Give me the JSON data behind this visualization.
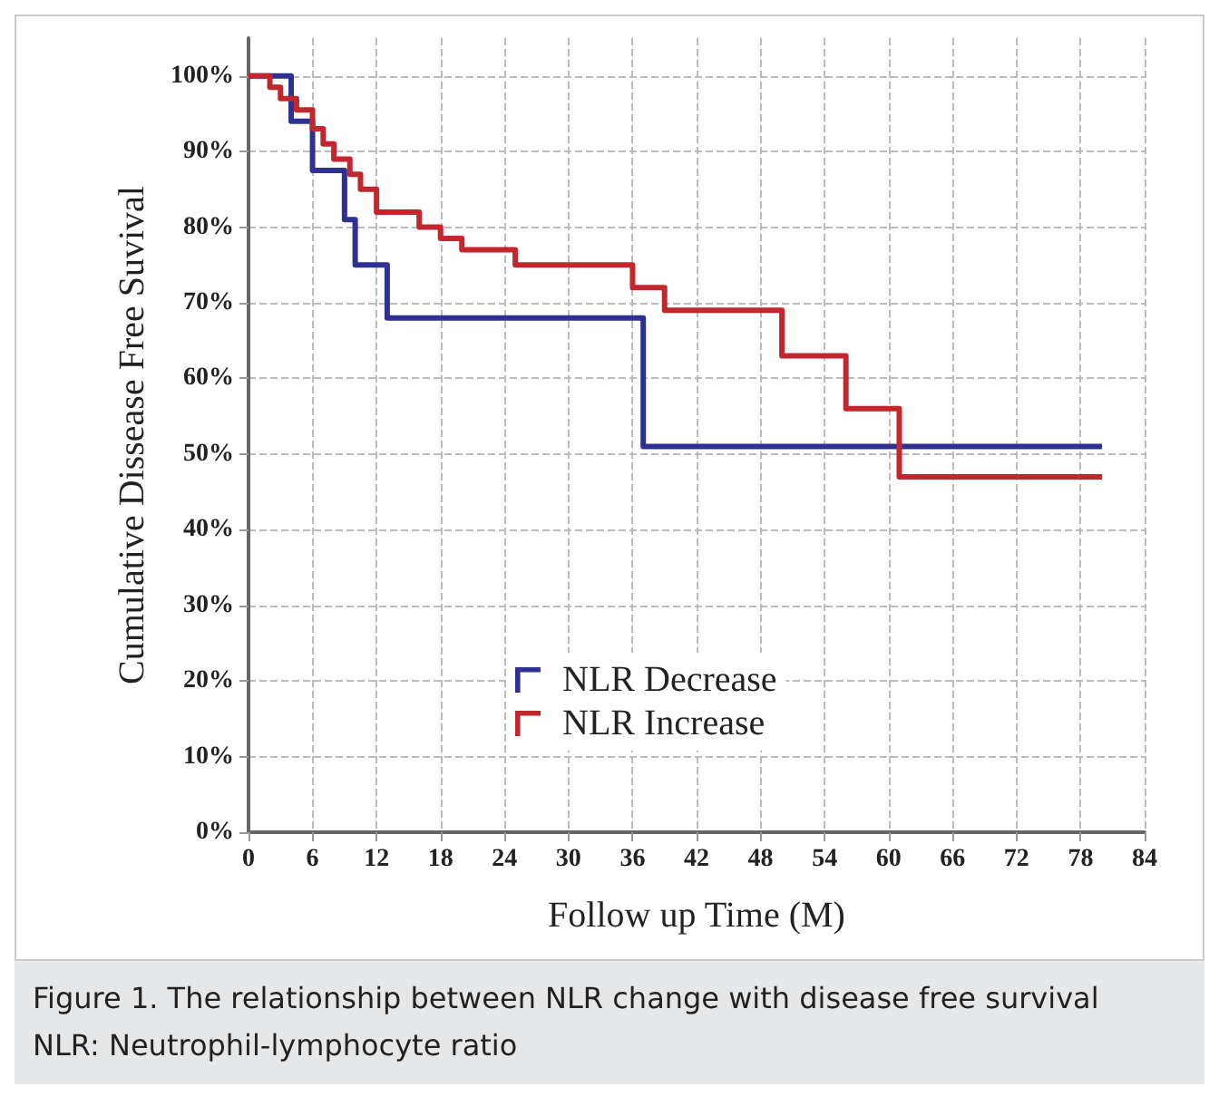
{
  "chart_data": {
    "type": "step",
    "xlabel": "Follow up Time (M)",
    "ylabel": "Cumulative Dissease Free Suvival",
    "series": [
      {
        "name": "NLR Decrease",
        "color": "#2e3192",
        "x": [
          0,
          4,
          6,
          9,
          10,
          13,
          37,
          80
        ],
        "values": [
          100,
          94,
          87.5,
          81,
          75,
          68,
          51,
          51
        ]
      },
      {
        "name": "NLR Increase",
        "color": "#c1272d",
        "x": [
          0,
          2,
          3,
          4.5,
          6,
          7,
          8,
          9.5,
          10.5,
          12,
          16,
          18,
          20,
          25,
          36,
          39,
          50,
          56,
          61,
          80
        ],
        "values": [
          100,
          98.5,
          97,
          95.5,
          93,
          91,
          89,
          87,
          85,
          82,
          80,
          78.5,
          77,
          75,
          72,
          69,
          63,
          56,
          47,
          47
        ]
      }
    ],
    "xlim": [
      0,
      84
    ],
    "xticks": [
      0,
      6,
      12,
      18,
      24,
      30,
      36,
      42,
      48,
      54,
      60,
      66,
      72,
      78,
      84
    ],
    "ylim": [
      0,
      105
    ],
    "yticks": [
      {
        "value": 0,
        "label": "0%"
      },
      {
        "value": 10,
        "label": "10%"
      },
      {
        "value": 20,
        "label": "20%"
      },
      {
        "value": 30,
        "label": "30%"
      },
      {
        "value": 40,
        "label": "40%"
      },
      {
        "value": 50,
        "label": "50%"
      },
      {
        "value": 60,
        "label": "60%"
      },
      {
        "value": 70,
        "label": "70%"
      },
      {
        "value": 80,
        "label": "80%"
      },
      {
        "value": 90,
        "label": "90%"
      },
      {
        "value": 100,
        "label": "100%"
      }
    ],
    "grid": true,
    "legend": "bottom",
    "line_style": "solid",
    "marker": "none",
    "annotations": [
      "Figure 1. The relationship between NLR change with disease free survival",
      "NLR: Neutrophil-lymphocyte ratio"
    ]
  }
}
